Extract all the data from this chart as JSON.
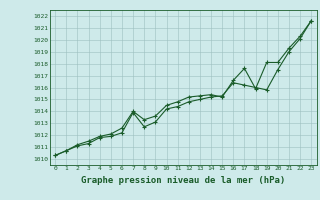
{
  "title": "Graphe pression niveau de la mer (hPa)",
  "bg_color": "#ceeaea",
  "grid_color": "#9dbfbf",
  "line_color": "#1a5c2a",
  "xlim": [
    -0.5,
    23.5
  ],
  "ylim": [
    1009.5,
    1022.5
  ],
  "xticks": [
    0,
    1,
    2,
    3,
    4,
    5,
    6,
    7,
    8,
    9,
    10,
    11,
    12,
    13,
    14,
    15,
    16,
    17,
    18,
    19,
    20,
    21,
    22,
    23
  ],
  "yticks": [
    1010,
    1011,
    1012,
    1013,
    1014,
    1015,
    1016,
    1017,
    1018,
    1019,
    1020,
    1021,
    1022
  ],
  "series1_x": [
    0,
    1,
    2,
    3,
    4,
    5,
    6,
    7,
    8,
    9,
    10,
    11,
    12,
    13,
    14,
    15,
    16,
    17,
    18,
    19,
    20,
    21,
    22,
    23
  ],
  "series1_y": [
    1010.3,
    1010.7,
    1011.1,
    1011.3,
    1011.8,
    1011.9,
    1012.2,
    1013.9,
    1012.7,
    1013.1,
    1014.2,
    1014.4,
    1014.8,
    1015.0,
    1015.2,
    1015.3,
    1016.4,
    1016.2,
    1016.0,
    1015.8,
    1017.5,
    1019.0,
    1020.1,
    1021.6
  ],
  "series2_x": [
    0,
    1,
    2,
    3,
    4,
    5,
    6,
    7,
    8,
    9,
    10,
    11,
    12,
    13,
    14,
    15,
    16,
    17,
    18,
    19,
    20,
    21,
    22,
    23
  ],
  "series2_y": [
    1010.3,
    1010.7,
    1011.2,
    1011.5,
    1011.9,
    1012.1,
    1012.6,
    1014.0,
    1013.3,
    1013.6,
    1014.5,
    1014.8,
    1015.2,
    1015.3,
    1015.4,
    1015.2,
    1016.6,
    1017.6,
    1015.9,
    1018.1,
    1018.1,
    1019.3,
    1020.3,
    1021.6
  ],
  "marker": "+",
  "markersize": 3.5,
  "markeredgewidth": 0.8,
  "linewidth": 0.8,
  "tick_fontsize": 4.5,
  "label_fontsize": 6.5,
  "label_fontweight": "bold"
}
